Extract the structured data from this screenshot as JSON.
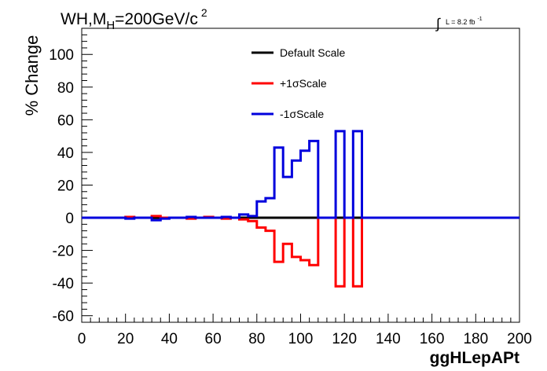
{
  "chart_data": {
    "type": "line",
    "title": "WH,M",
    "title_sub": "H",
    "title_rest": "=200GeV/c",
    "title_sup": "2",
    "lumi": {
      "integral": "∫",
      "text": "L = 8.2 fb",
      "sup": "-1"
    },
    "xlabel": "ggHLepAPt",
    "ylabel": "% Change",
    "xlim": [
      0,
      200
    ],
    "ylim": [
      -64,
      116
    ],
    "xticks": [
      0,
      20,
      40,
      60,
      80,
      100,
      120,
      140,
      160,
      180,
      200
    ],
    "yticks": [
      -60,
      -40,
      -20,
      0,
      20,
      40,
      60,
      80,
      100
    ],
    "grid": false,
    "legend_position": "top-center",
    "bin_edges": [
      0,
      4,
      8,
      12,
      16,
      20,
      24,
      28,
      32,
      36,
      40,
      44,
      48,
      52,
      56,
      60,
      64,
      68,
      72,
      76,
      80,
      84,
      88,
      92,
      96,
      100,
      104,
      108,
      112,
      116,
      120,
      124,
      128,
      132,
      136,
      140,
      144,
      148,
      152,
      156,
      160,
      164,
      168,
      172,
      176,
      180,
      184,
      188,
      192,
      196,
      200
    ],
    "series": [
      {
        "name": "Default Scale",
        "color": "#000000",
        "values": [
          0,
          0,
          0,
          0,
          0,
          0,
          0,
          0,
          0,
          0,
          0,
          0,
          0,
          0,
          0,
          0,
          0,
          0,
          0,
          0,
          0,
          0,
          0,
          0,
          0,
          0,
          0,
          0,
          0,
          0,
          0,
          0,
          0,
          0,
          0,
          0,
          0,
          0,
          0,
          0,
          0,
          0,
          0,
          0,
          0,
          0,
          0,
          0,
          0,
          0
        ]
      },
      {
        "name": "+1σScale",
        "color": "#ff0000",
        "values": [
          0,
          0,
          0,
          0,
          0,
          0.5,
          0,
          0,
          1,
          0,
          0,
          0,
          -0.5,
          0,
          0.5,
          0,
          -0.5,
          0,
          -1,
          -2,
          -6,
          -8,
          -27,
          -16,
          -24,
          -26,
          -29,
          0,
          0,
          -42,
          0,
          -42,
          0,
          0,
          0,
          0,
          0,
          0,
          0,
          0,
          0,
          0,
          0,
          0,
          0,
          0,
          0,
          0,
          0,
          0
        ]
      },
      {
        "name": "-1σScale",
        "color": "#0000dd",
        "values": [
          0,
          0,
          0,
          0,
          0,
          -0.5,
          0,
          0,
          -1.5,
          -0.5,
          0,
          0,
          0.5,
          0,
          0,
          0,
          0.5,
          0,
          2,
          1,
          10,
          12,
          43,
          25,
          35,
          41,
          47,
          0,
          0,
          53,
          0,
          53,
          0,
          0,
          0,
          0,
          0,
          0,
          0,
          0,
          0,
          0,
          0,
          0,
          0,
          0,
          0,
          0,
          0,
          0
        ]
      }
    ]
  }
}
